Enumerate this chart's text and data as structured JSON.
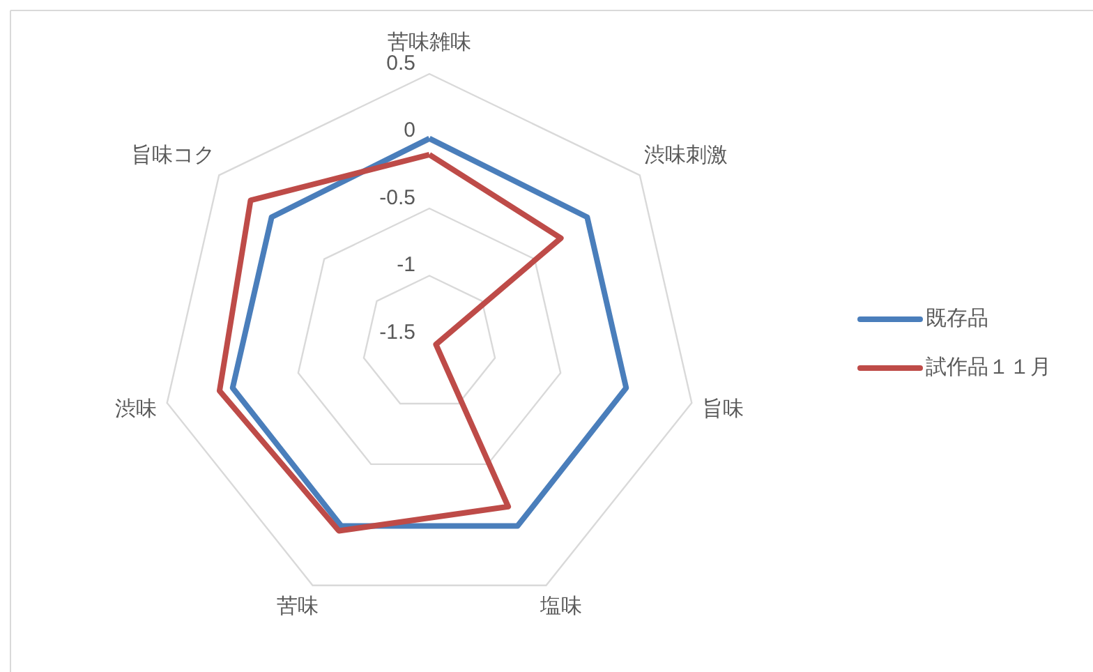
{
  "chart_data": {
    "type": "radar",
    "categories": [
      "苦味雑味",
      "渋味刺激",
      "旨味",
      "塩味",
      "苦味",
      "渋味",
      "旨味コク"
    ],
    "ylim": [
      -1.5,
      0.5
    ],
    "yticks": [
      -1.5,
      -1,
      -0.5,
      0,
      0.5
    ],
    "grid": true,
    "legend": "right",
    "series": [
      {
        "name": "既存品",
        "color": "#4a7ebb",
        "values": [
          0.02,
          0,
          0,
          0.01,
          0.01,
          0,
          0
        ]
      },
      {
        "name": "試作品１１月",
        "color": "#be4b48",
        "values": [
          -0.1,
          -0.25,
          -1.45,
          -0.15,
          0.05,
          0.1,
          0.2
        ]
      }
    ]
  }
}
